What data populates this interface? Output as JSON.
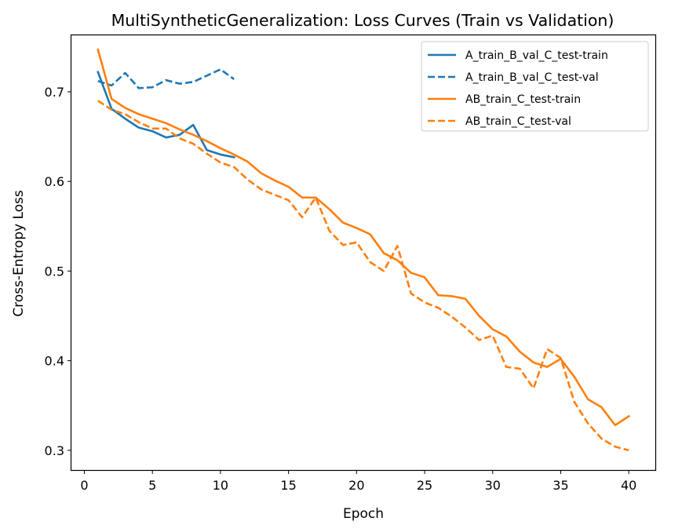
{
  "chart_data": {
    "type": "line",
    "title": "MultiSyntheticGeneralization: Loss Curves (Train vs Validation)",
    "xlabel": "Epoch",
    "ylabel": "Cross-Entropy Loss",
    "xlim": [
      -0.95,
      41.95
    ],
    "ylim": [
      0.278,
      0.763
    ],
    "xticks": [
      0,
      5,
      10,
      15,
      20,
      25,
      30,
      35,
      40
    ],
    "yticks": [
      0.3,
      0.4,
      0.5,
      0.6,
      0.7
    ],
    "xtick_labels": [
      "0",
      "5",
      "10",
      "15",
      "20",
      "25",
      "30",
      "35",
      "40"
    ],
    "ytick_labels": [
      "0.3",
      "0.4",
      "0.5",
      "0.6",
      "0.7"
    ],
    "grid": false,
    "legend_position": "top-right",
    "series": [
      {
        "name": "A_train_B_val_C_test-train",
        "color": "#1f77b4",
        "style": "solid",
        "x": [
          1,
          2,
          3,
          4,
          5,
          6,
          7,
          8,
          9,
          10,
          11
        ],
        "y": [
          0.722,
          0.681,
          0.67,
          0.66,
          0.656,
          0.649,
          0.652,
          0.663,
          0.635,
          0.63,
          0.627
        ]
      },
      {
        "name": "A_train_B_val_C_test-val",
        "color": "#1f77b4",
        "style": "dashed",
        "x": [
          1,
          2,
          3,
          4,
          5,
          6,
          7,
          8,
          9,
          10,
          11
        ],
        "y": [
          0.712,
          0.707,
          0.721,
          0.704,
          0.705,
          0.713,
          0.709,
          0.711,
          0.718,
          0.725,
          0.714
        ]
      },
      {
        "name": "AB_train_C_test-train",
        "color": "#ff7f0e",
        "style": "solid",
        "x": [
          1,
          2,
          3,
          4,
          5,
          6,
          7,
          8,
          9,
          10,
          11,
          12,
          13,
          14,
          15,
          16,
          17,
          18,
          19,
          20,
          21,
          22,
          23,
          24,
          25,
          26,
          27,
          28,
          29,
          30,
          31,
          32,
          33,
          34,
          35,
          36,
          37,
          38,
          39,
          40
        ],
        "y": [
          0.747,
          0.692,
          0.682,
          0.675,
          0.67,
          0.665,
          0.658,
          0.652,
          0.645,
          0.637,
          0.63,
          0.622,
          0.609,
          0.601,
          0.594,
          0.582,
          0.582,
          0.569,
          0.554,
          0.548,
          0.541,
          0.52,
          0.512,
          0.498,
          0.493,
          0.473,
          0.472,
          0.469,
          0.45,
          0.435,
          0.427,
          0.41,
          0.398,
          0.393,
          0.402,
          0.382,
          0.357,
          0.348,
          0.328,
          0.338
        ]
      },
      {
        "name": "AB_train_C_test-val",
        "color": "#ff7f0e",
        "style": "dashed",
        "x": [
          1,
          2,
          3,
          4,
          5,
          6,
          7,
          8,
          9,
          10,
          11,
          12,
          13,
          14,
          15,
          16,
          17,
          18,
          19,
          20,
          21,
          22,
          23,
          24,
          25,
          26,
          27,
          28,
          29,
          30,
          31,
          32,
          33,
          34,
          35,
          36,
          37,
          38,
          39,
          40
        ],
        "y": [
          0.69,
          0.68,
          0.675,
          0.666,
          0.659,
          0.659,
          0.648,
          0.642,
          0.631,
          0.621,
          0.616,
          0.602,
          0.591,
          0.585,
          0.579,
          0.56,
          0.582,
          0.545,
          0.529,
          0.532,
          0.51,
          0.5,
          0.528,
          0.475,
          0.465,
          0.459,
          0.449,
          0.437,
          0.423,
          0.428,
          0.393,
          0.391,
          0.369,
          0.413,
          0.403,
          0.354,
          0.33,
          0.313,
          0.304,
          0.3
        ]
      }
    ]
  }
}
